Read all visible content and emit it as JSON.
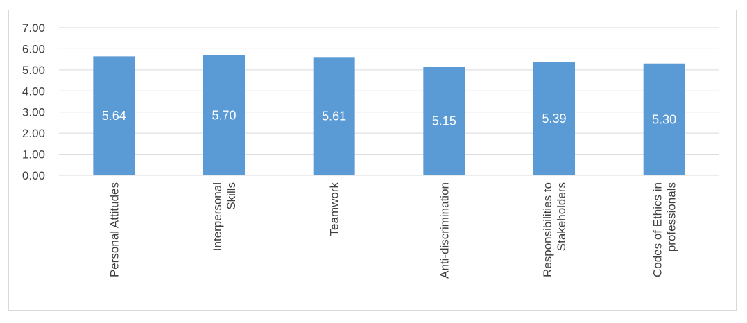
{
  "chart_data": {
    "type": "bar",
    "title": "",
    "xlabel": "",
    "ylabel": "",
    "categories": [
      [
        "Personal Attitudes"
      ],
      [
        "Interpersonal",
        "Skills"
      ],
      [
        "Teamwork"
      ],
      [
        "Anti-discrimination"
      ],
      [
        "Responsibilities to",
        "Stakeholders"
      ],
      [
        "Codes of Ethics in",
        "professionals"
      ]
    ],
    "values": [
      5.64,
      5.7,
      5.61,
      5.15,
      5.39,
      5.3
    ],
    "data_labels": [
      "5.64",
      "5.70",
      "5.61",
      "5.15",
      "5.39",
      "5.30"
    ],
    "ylim": [
      0,
      7
    ],
    "yticks": [
      "0.00",
      "1.00",
      "2.00",
      "3.00",
      "4.00",
      "5.00",
      "6.00",
      "7.00"
    ],
    "grid": true,
    "legend": "none",
    "colors": {
      "bar": "#5b9bd5",
      "grid": "#d9d9d9",
      "text": "#404040",
      "data_label": "#ffffff"
    }
  }
}
